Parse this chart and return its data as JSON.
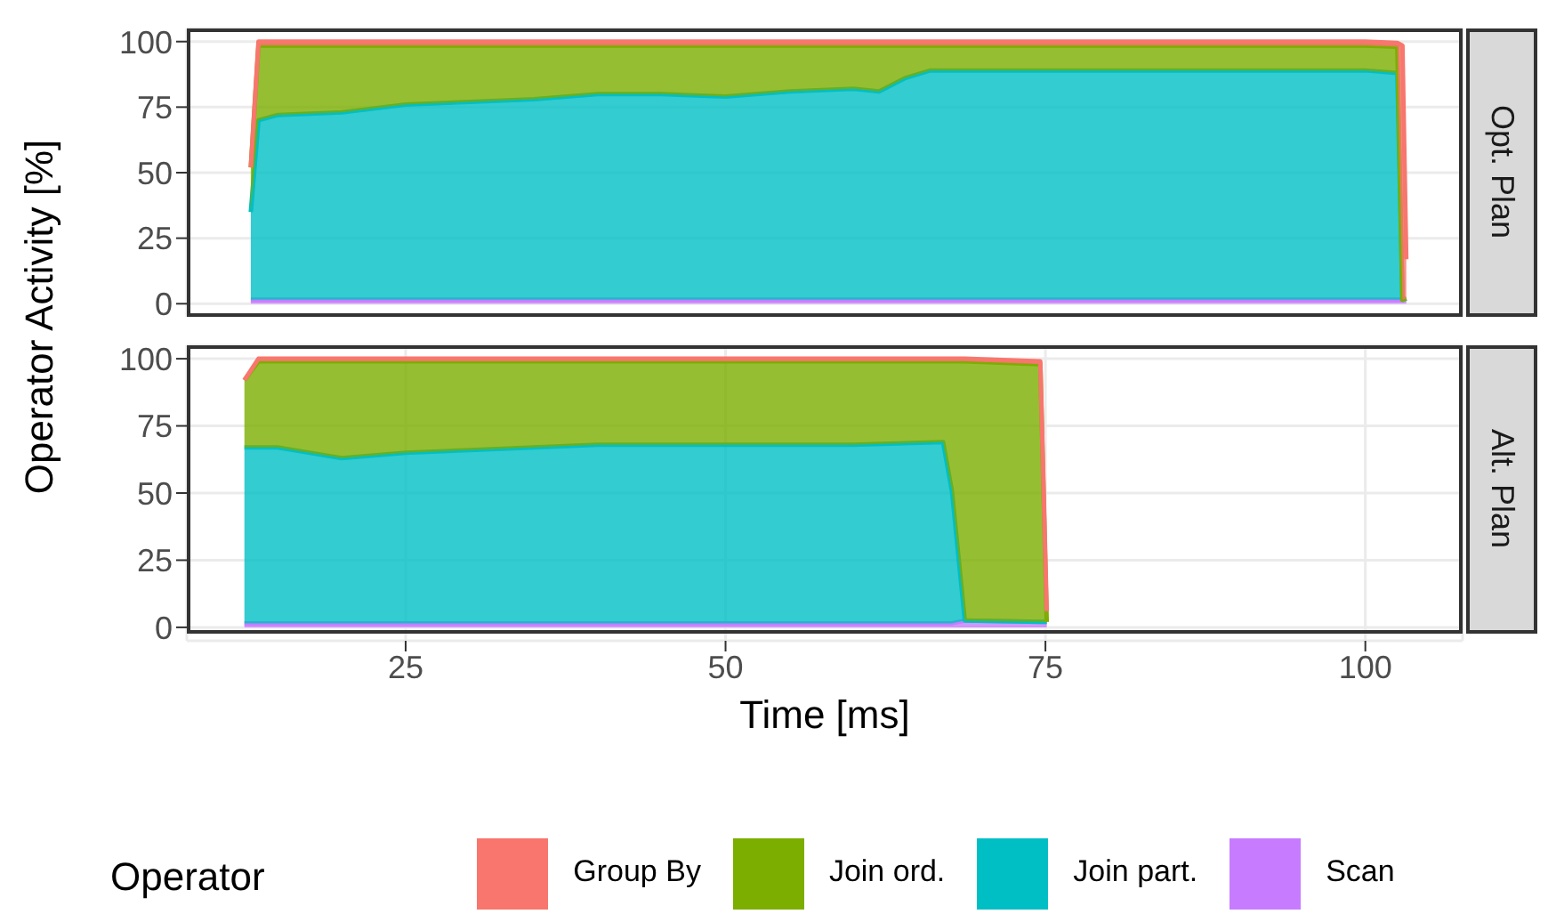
{
  "chart_data": [
    {
      "type": "area",
      "annotations": [
        "Opt. Plan"
      ],
      "ylabel": "Operator Activity [%]",
      "stacked": true,
      "grid": true,
      "tick_labels": "y",
      "x": [
        12.9,
        13.5,
        15,
        20,
        25,
        30,
        35,
        40,
        45,
        50,
        55,
        60,
        62,
        64,
        66,
        70,
        75,
        80,
        85,
        90,
        95,
        100,
        102.5,
        102.9,
        103.2
      ],
      "xlim": [
        7.9,
        107.6
      ],
      "xticks": [
        25,
        50,
        75,
        100
      ],
      "ylim": [
        -5,
        105
      ],
      "yticks": [
        0,
        25,
        50,
        75,
        100
      ],
      "series": [
        {
          "color": "#c77cff",
          "values": [
            1.5,
            1.5,
            1.5,
            1.5,
            1.5,
            1.5,
            1.5,
            1.5,
            1.5,
            1.5,
            1.5,
            1.5,
            1.5,
            1.5,
            1.5,
            1.5,
            1.5,
            1.5,
            1.5,
            1.5,
            1.5,
            1.5,
            1.5,
            1.5,
            2
          ]
        },
        {
          "color": "#00bfc4",
          "values": [
            33.5,
            68.5,
            70.5,
            71.5,
            74.5,
            75.5,
            76.5,
            78.5,
            78.5,
            77.5,
            79.5,
            80.5,
            79.5,
            84.5,
            87.5,
            87.5,
            87.5,
            87.5,
            87.5,
            87.5,
            87.5,
            87.5,
            86.5,
            0,
            0
          ]
        },
        {
          "color": "#7cae00",
          "values": [
            17,
            28.5,
            26.5,
            25.5,
            22.5,
            21.5,
            20.5,
            18.5,
            18.5,
            19.5,
            17.5,
            16.5,
            17.5,
            12.5,
            9.5,
            9.5,
            9.5,
            9.5,
            9.5,
            9.5,
            9.5,
            9.5,
            10,
            0,
            0
          ]
        },
        {
          "color": "#f8766d",
          "values": [
            0,
            1.5,
            1.5,
            1.5,
            1.5,
            1.5,
            1.5,
            1.5,
            1.5,
            1.5,
            1.5,
            1.5,
            1.5,
            1.5,
            1.5,
            1.5,
            1.5,
            1.5,
            1.5,
            1.5,
            1.5,
            1.5,
            1.5,
            97,
            15
          ]
        }
      ]
    },
    {
      "type": "area",
      "annotations": [
        "Alt. Plan"
      ],
      "xlabel": "Time [ms]",
      "stacked": true,
      "grid": true,
      "legend": "bottom",
      "legend_title": "Operator",
      "x": [
        12.4,
        13.5,
        15,
        20,
        25,
        30,
        40,
        50,
        60,
        67,
        67.7,
        68.7,
        74.6,
        75.1
      ],
      "xlim": [
        7.9,
        107.6
      ],
      "xticks": [
        25,
        50,
        75,
        100
      ],
      "ylim": [
        -5,
        105
      ],
      "yticks": [
        0,
        25,
        50,
        75,
        100
      ],
      "series": [
        {
          "name": "Scan",
          "color": "#c77cff",
          "values": [
            1.5,
            1.5,
            1.5,
            1.5,
            1.5,
            1.5,
            1.5,
            1.5,
            1.5,
            1.5,
            1.5,
            2.5,
            2,
            2
          ]
        },
        {
          "name": "Join part.",
          "color": "#00bfc4",
          "values": [
            65.5,
            65.5,
            65.5,
            61.5,
            63.5,
            64.5,
            66.5,
            66.5,
            66.5,
            67.5,
            49,
            0,
            0,
            0
          ]
        },
        {
          "name": "Join ord.",
          "color": "#7cae00",
          "values": [
            25,
            32,
            32,
            36,
            34,
            33,
            31,
            31,
            31,
            30,
            48.5,
            96.5,
            96,
            0
          ]
        },
        {
          "name": "Group By",
          "color": "#f8766d",
          "values": [
            0,
            1,
            1,
            1,
            1,
            1,
            1,
            1,
            1,
            1,
            1,
            1,
            1,
            4
          ]
        }
      ]
    }
  ]
}
